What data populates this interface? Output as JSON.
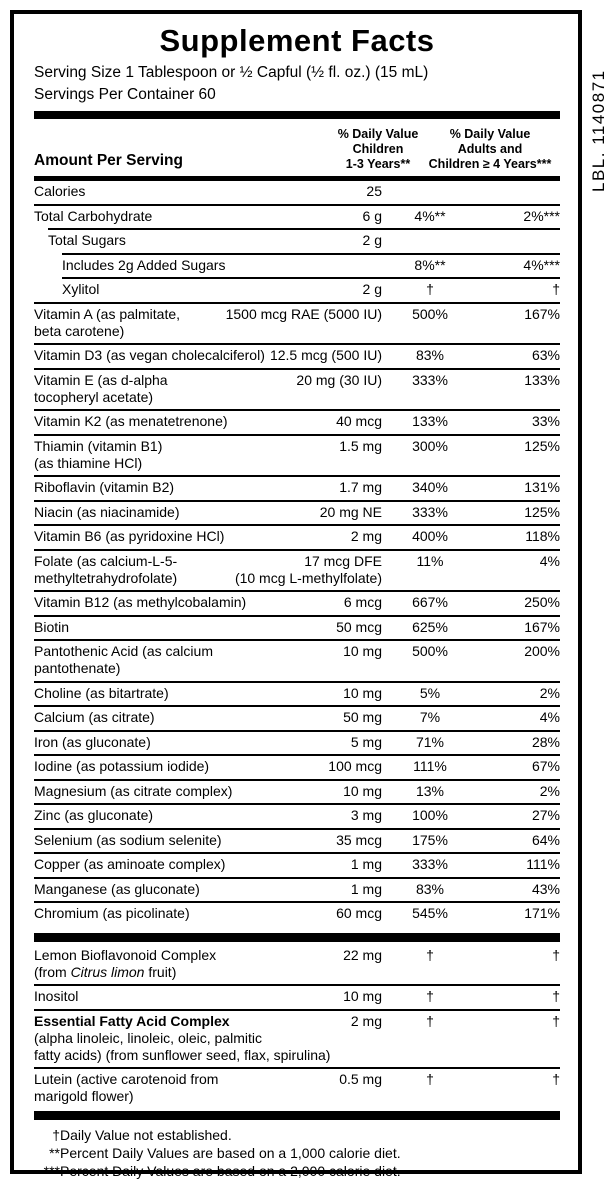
{
  "lbl_code": "LBL. 1140871",
  "title": "Supplement Facts",
  "serving": {
    "size_line": "Serving Size 1 Tablespoon or ½ Capful (½ fl. oz.) (15 mL)",
    "servings_line": "Servings Per Container 60"
  },
  "header": {
    "amount_label": "Amount Per Serving",
    "col_children": "% Daily Value\nChildren\n1-3 Years**",
    "col_adults": "% Daily Value\nAdults and\nChildren ≥ 4 Years***"
  },
  "table": {
    "main_rows": [
      {
        "name": "Calories",
        "amount": "25",
        "dv_children": "",
        "dv_adults": "",
        "indent": 0,
        "rule": false
      },
      {
        "name": "Total Carbohydrate",
        "amount": "6 g",
        "dv_children": "4%**",
        "dv_adults": "2%***",
        "indent": 0,
        "rule": true
      },
      {
        "name": "Total Sugars",
        "amount": "2 g",
        "dv_children": "",
        "dv_adults": "",
        "indent": 1,
        "rule": true
      },
      {
        "name": "Includes 2g Added Sugars",
        "amount": "",
        "dv_children": "8%**",
        "dv_adults": "4%***",
        "indent": 2,
        "rule": true
      },
      {
        "name": "Xylitol",
        "amount": "2 g",
        "dv_children": "†",
        "dv_adults": "†",
        "indent": 2,
        "rule": true
      },
      {
        "name": "Vitamin A (as palmitate,\nbeta carotene)",
        "amount": "1500 mcg RAE (5000 IU)",
        "dv_children": "500%",
        "dv_adults": "167%",
        "indent": 0,
        "rule": true
      },
      {
        "name": "Vitamin D3 (as vegan cholecalciferol)",
        "amount": "12.5 mcg (500 IU)",
        "dv_children": "83%",
        "dv_adults": "63%",
        "indent": 0,
        "rule": true
      },
      {
        "name": "Vitamin E (as d-alpha\ntocopheryl acetate)",
        "amount": "20 mg (30 IU)",
        "dv_children": "333%",
        "dv_adults": "133%",
        "indent": 0,
        "rule": true
      },
      {
        "name": "Vitamin K2 (as menatetrenone)",
        "amount": "40 mcg",
        "dv_children": "133%",
        "dv_adults": "33%",
        "indent": 0,
        "rule": true
      },
      {
        "name": "Thiamin (vitamin B1)\n(as thiamine HCl)",
        "amount": "1.5 mg",
        "dv_children": "300%",
        "dv_adults": "125%",
        "indent": 0,
        "rule": true
      },
      {
        "name": "Riboflavin (vitamin B2)",
        "amount": "1.7 mg",
        "dv_children": "340%",
        "dv_adults": "131%",
        "indent": 0,
        "rule": true
      },
      {
        "name": "Niacin (as niacinamide)",
        "amount": "20 mg NE",
        "dv_children": "333%",
        "dv_adults": "125%",
        "indent": 0,
        "rule": true
      },
      {
        "name": "Vitamin B6 (as pyridoxine HCl)",
        "amount": "2 mg",
        "dv_children": "400%",
        "dv_adults": "118%",
        "indent": 0,
        "rule": true
      },
      {
        "name": "Folate (as calcium-L-5-\nmethyltetrahydrofolate)",
        "amount": "17 mcg DFE\n(10 mcg L-methylfolate)",
        "dv_children": "11%",
        "dv_adults": "4%",
        "indent": 0,
        "rule": true
      },
      {
        "name": "Vitamin B12 (as methylcobalamin)",
        "amount": "6 mcg",
        "dv_children": "667%",
        "dv_adults": "250%",
        "indent": 0,
        "rule": true
      },
      {
        "name": "Biotin",
        "amount": "50 mcg",
        "dv_children": "625%",
        "dv_adults": "167%",
        "indent": 0,
        "rule": true
      },
      {
        "name": "Pantothenic Acid (as calcium\npantothenate)",
        "amount": "10 mg",
        "dv_children": "500%",
        "dv_adults": "200%",
        "indent": 0,
        "rule": true
      },
      {
        "name": "Choline (as bitartrate)",
        "amount": "10 mg",
        "dv_children": "5%",
        "dv_adults": "2%",
        "indent": 0,
        "rule": true
      },
      {
        "name": "Calcium (as citrate)",
        "amount": "50 mg",
        "dv_children": "7%",
        "dv_adults": "4%",
        "indent": 0,
        "rule": true
      },
      {
        "name": "Iron (as gluconate)",
        "amount": "5 mg",
        "dv_children": "71%",
        "dv_adults": "28%",
        "indent": 0,
        "rule": true
      },
      {
        "name": "Iodine (as potassium iodide)",
        "amount": "100 mcg",
        "dv_children": "111%",
        "dv_adults": "67%",
        "indent": 0,
        "rule": true
      },
      {
        "name": "Magnesium (as citrate complex)",
        "amount": "10 mg",
        "dv_children": "13%",
        "dv_adults": "2%",
        "indent": 0,
        "rule": true
      },
      {
        "name": "Zinc (as gluconate)",
        "amount": "3 mg",
        "dv_children": "100%",
        "dv_adults": "27%",
        "indent": 0,
        "rule": true
      },
      {
        "name": "Selenium (as sodium selenite)",
        "amount": "35 mcg",
        "dv_children": "175%",
        "dv_adults": "64%",
        "indent": 0,
        "rule": true
      },
      {
        "name": "Copper (as aminoate complex)",
        "amount": "1 mg",
        "dv_children": "333%",
        "dv_adults": "111%",
        "indent": 0,
        "rule": true
      },
      {
        "name": "Manganese (as gluconate)",
        "amount": "1 mg",
        "dv_children": "83%",
        "dv_adults": "43%",
        "indent": 0,
        "rule": true
      },
      {
        "name": "Chromium (as picolinate)",
        "amount": "60 mcg",
        "dv_children": "545%",
        "dv_adults": "171%",
        "indent": 0,
        "rule": true
      }
    ],
    "secondary_rows": [
      {
        "name": "Lemon Bioflavonoid Complex\n(from *Citrus limon* fruit)",
        "amount": "22 mg",
        "dv_children": "†",
        "dv_adults": "†",
        "indent": 0,
        "rule": false
      },
      {
        "name": "Inositol",
        "amount": "10 mg",
        "dv_children": "†",
        "dv_adults": "†",
        "indent": 0,
        "rule": true
      },
      {
        "name": "**Essential Fatty Acid Complex**\n(alpha linoleic, linoleic, oleic, palmitic\nfatty acids) (from sunflower seed, flax, spirulina)",
        "amount": "2 mg",
        "dv_children": "†",
        "dv_adults": "†",
        "indent": 0,
        "rule": true
      },
      {
        "name": "Lutein (active carotenoid from\nmarigold flower)",
        "amount": "0.5 mg",
        "dv_children": "†",
        "dv_adults": "†",
        "indent": 0,
        "rule": true
      }
    ]
  },
  "footnotes": [
    {
      "marker": "†",
      "text": "Daily Value not established."
    },
    {
      "marker": "**",
      "text": "Percent Daily Values are based on a 1,000 calorie diet."
    },
    {
      "marker": "***",
      "text": "Percent Daily Values are based on a 2,000 calorie diet."
    }
  ],
  "colors": {
    "ink": "#000000",
    "paper": "#ffffff"
  }
}
